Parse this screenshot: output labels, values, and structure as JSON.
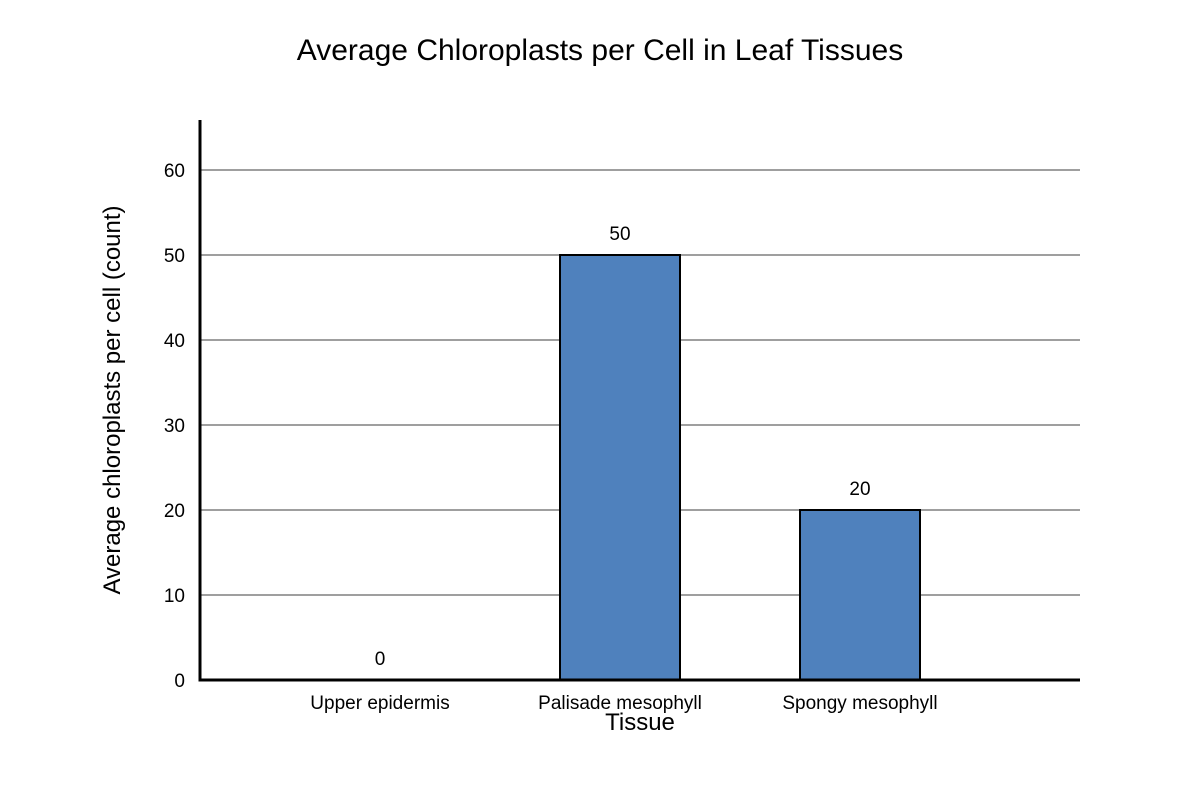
{
  "chart_data": {
    "type": "bar",
    "title": "Average Chloroplasts per Cell in Leaf Tissues",
    "xlabel": "Tissue",
    "ylabel": "Average chloroplasts per cell (count)",
    "categories": [
      "Upper epidermis",
      "Palisade mesophyll",
      "Spongy mesophyll"
    ],
    "values": [
      0,
      50,
      20
    ],
    "ylim": [
      0,
      65
    ],
    "yticks": [
      0,
      10,
      20,
      30,
      40,
      50,
      60
    ],
    "grid": true,
    "legend": "none",
    "bar_color": "#4f81bd",
    "data_labels": true
  }
}
